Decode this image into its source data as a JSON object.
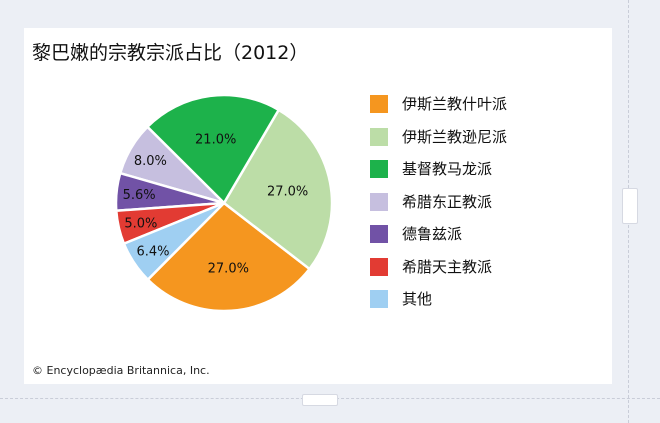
{
  "title": "黎巴嫩的宗教宗派占比（2012）",
  "credit": "© Encyclopædia Britannica, Inc.",
  "chart_data": {
    "type": "pie",
    "title": "黎巴嫩的宗教宗派占比（2012）",
    "slices": [
      {
        "name": "伊斯兰教什叶派",
        "value": 27.0,
        "label": "27.0%",
        "color": "#f5961f"
      },
      {
        "name": "伊斯兰教逊尼派",
        "value": 27.0,
        "label": "27.0%",
        "color": "#bcdda7"
      },
      {
        "name": "基督教马龙派",
        "value": 21.0,
        "label": "21.0%",
        "color": "#1db24b"
      },
      {
        "name": "希腊东正教派",
        "value": 8.0,
        "label": "8.0%",
        "color": "#c6bfdf"
      },
      {
        "name": "德鲁兹派",
        "value": 5.6,
        "label": "5.6%",
        "color": "#7152a6"
      },
      {
        "name": "希腊天主教派",
        "value": 5.0,
        "label": "5.0%",
        "color": "#e23b33"
      },
      {
        "name": "其他",
        "value": 6.4,
        "label": "6.4%",
        "color": "#9fcff2"
      }
    ],
    "legend_position": "right"
  }
}
